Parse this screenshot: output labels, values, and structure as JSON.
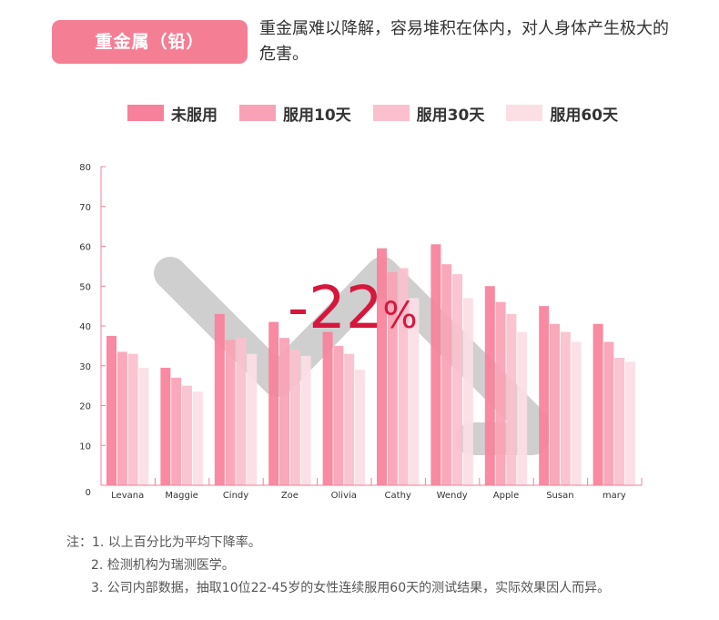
{
  "header": {
    "badge": "重金属（铅）",
    "description": "重金属难以降解，容易堆积在体内，对人身体产生极大的危害。"
  },
  "chart_data": {
    "type": "bar",
    "categories": [
      "Levana",
      "Maggie",
      "Cindy",
      "Zoe",
      "Olivia",
      "Cathy",
      "Wendy",
      "Apple",
      "Susan",
      "mary"
    ],
    "series": [
      {
        "name": "未服用",
        "color": "#f7819a",
        "values": [
          37.5,
          29.5,
          43,
          41,
          38.5,
          59.5,
          60.5,
          50,
          45,
          40.5
        ]
      },
      {
        "name": "服用10天",
        "color": "#f9a2b5",
        "values": [
          33.5,
          27,
          36.5,
          37,
          35,
          53.5,
          55.5,
          46,
          40.5,
          36
        ]
      },
      {
        "name": "服用30天",
        "color": "#fbc0cd",
        "values": [
          33,
          25,
          37,
          34,
          33,
          54.5,
          53,
          43,
          38.5,
          32
        ]
      },
      {
        "name": "服用60天",
        "color": "#fbdfe5",
        "values": [
          29.5,
          23.5,
          33,
          32.5,
          29,
          47,
          47,
          38.5,
          36,
          31
        ]
      }
    ],
    "yticks": [
      0,
      10,
      20,
      30,
      40,
      50,
      60,
      70,
      80
    ],
    "ylim": [
      0,
      80
    ],
    "annotation": {
      "value": "-22",
      "unit": "%",
      "color": "#d6173d"
    },
    "axis_color": "#f47f95",
    "arrow_color": "#bdbdbd"
  },
  "notes": {
    "prefix": "注：",
    "items": [
      "1. 以上百分比为平均下降率。",
      "2. 检测机构为瑞测医学。",
      "3. 公司内部数据，抽取10位22-45岁的女性连续服用60天的测试结果，实际效果因人而异。"
    ]
  }
}
